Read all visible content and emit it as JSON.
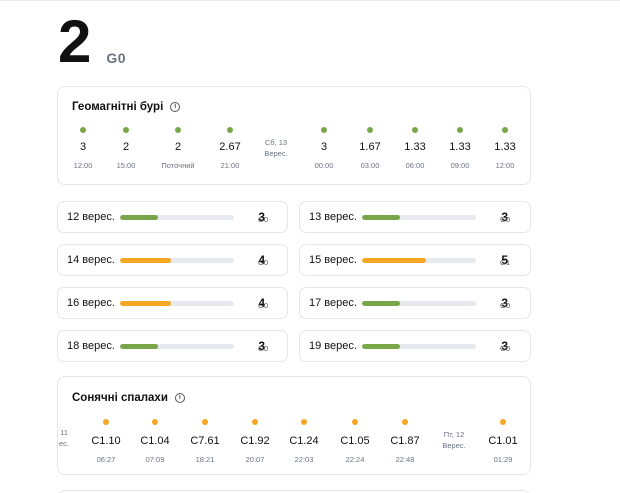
{
  "hero": {
    "value": "2",
    "unit": "G0"
  },
  "storms": {
    "title": "Геомагнітні бурі",
    "info_icon": "i",
    "timeline": [
      {
        "value": "3",
        "time": "12:00",
        "status": "green"
      },
      {
        "value": "2",
        "time": "15:00",
        "status": "green"
      },
      {
        "value": "2",
        "time": "Поточний",
        "status": "green"
      },
      {
        "value": "2.67",
        "time": "21:00",
        "status": "green"
      },
      {
        "value": "3",
        "time": "00:00",
        "status": "green"
      },
      {
        "value": "1.67",
        "time": "03:00",
        "status": "green"
      },
      {
        "value": "1.33",
        "time": "06:00",
        "status": "green"
      },
      {
        "value": "1.33",
        "time": "09:00",
        "status": "green"
      },
      {
        "value": "1.33",
        "time": "12:00",
        "status": "green"
      }
    ],
    "date_marker": {
      "line1": "Сб, 13",
      "line2": "Верес."
    }
  },
  "days": [
    {
      "label": "12 верес.",
      "value": "3",
      "g": "G0",
      "fill": 0.33,
      "color": "#78a649"
    },
    {
      "label": "13 верес.",
      "value": "3",
      "g": "G0",
      "fill": 0.33,
      "color": "#78a649"
    },
    {
      "label": "14 верес.",
      "value": "4",
      "g": "G0",
      "fill": 0.45,
      "color": "#f5a623"
    },
    {
      "label": "15 верес.",
      "value": "5",
      "g": "G1",
      "fill": 0.56,
      "color": "#f5a623"
    },
    {
      "label": "16 верес.",
      "value": "4",
      "g": "G0",
      "fill": 0.45,
      "color": "#f5a623"
    },
    {
      "label": "17 верес.",
      "value": "3",
      "g": "G0",
      "fill": 0.33,
      "color": "#78a649"
    },
    {
      "label": "18 верес.",
      "value": "3",
      "g": "G0",
      "fill": 0.33,
      "color": "#78a649"
    },
    {
      "label": "19 верес.",
      "value": "3",
      "g": "G0",
      "fill": 0.33,
      "color": "#78a649"
    }
  ],
  "flares": {
    "title": "Сонячні спалахи",
    "info_icon": "i",
    "left_fragment": {
      "line1": "11",
      "line2": "ес."
    },
    "items": [
      {
        "value": "C1.10",
        "time": "06:27"
      },
      {
        "value": "C1.04",
        "time": "07:09"
      },
      {
        "value": "C7.61",
        "time": "18:21"
      },
      {
        "value": "C1.92",
        "time": "20:07"
      },
      {
        "value": "C1.24",
        "time": "22:03"
      },
      {
        "value": "C1.05",
        "time": "22:24"
      },
      {
        "value": "C1.87",
        "time": "22:48"
      },
      {
        "value": "C1.01",
        "time": "01:29"
      }
    ],
    "date_marker": {
      "line1": "Пт, 12",
      "line2": "Верес."
    }
  },
  "colors": {
    "green": "#78a649",
    "orange": "#f5a623",
    "track": "#e6e9ee"
  }
}
